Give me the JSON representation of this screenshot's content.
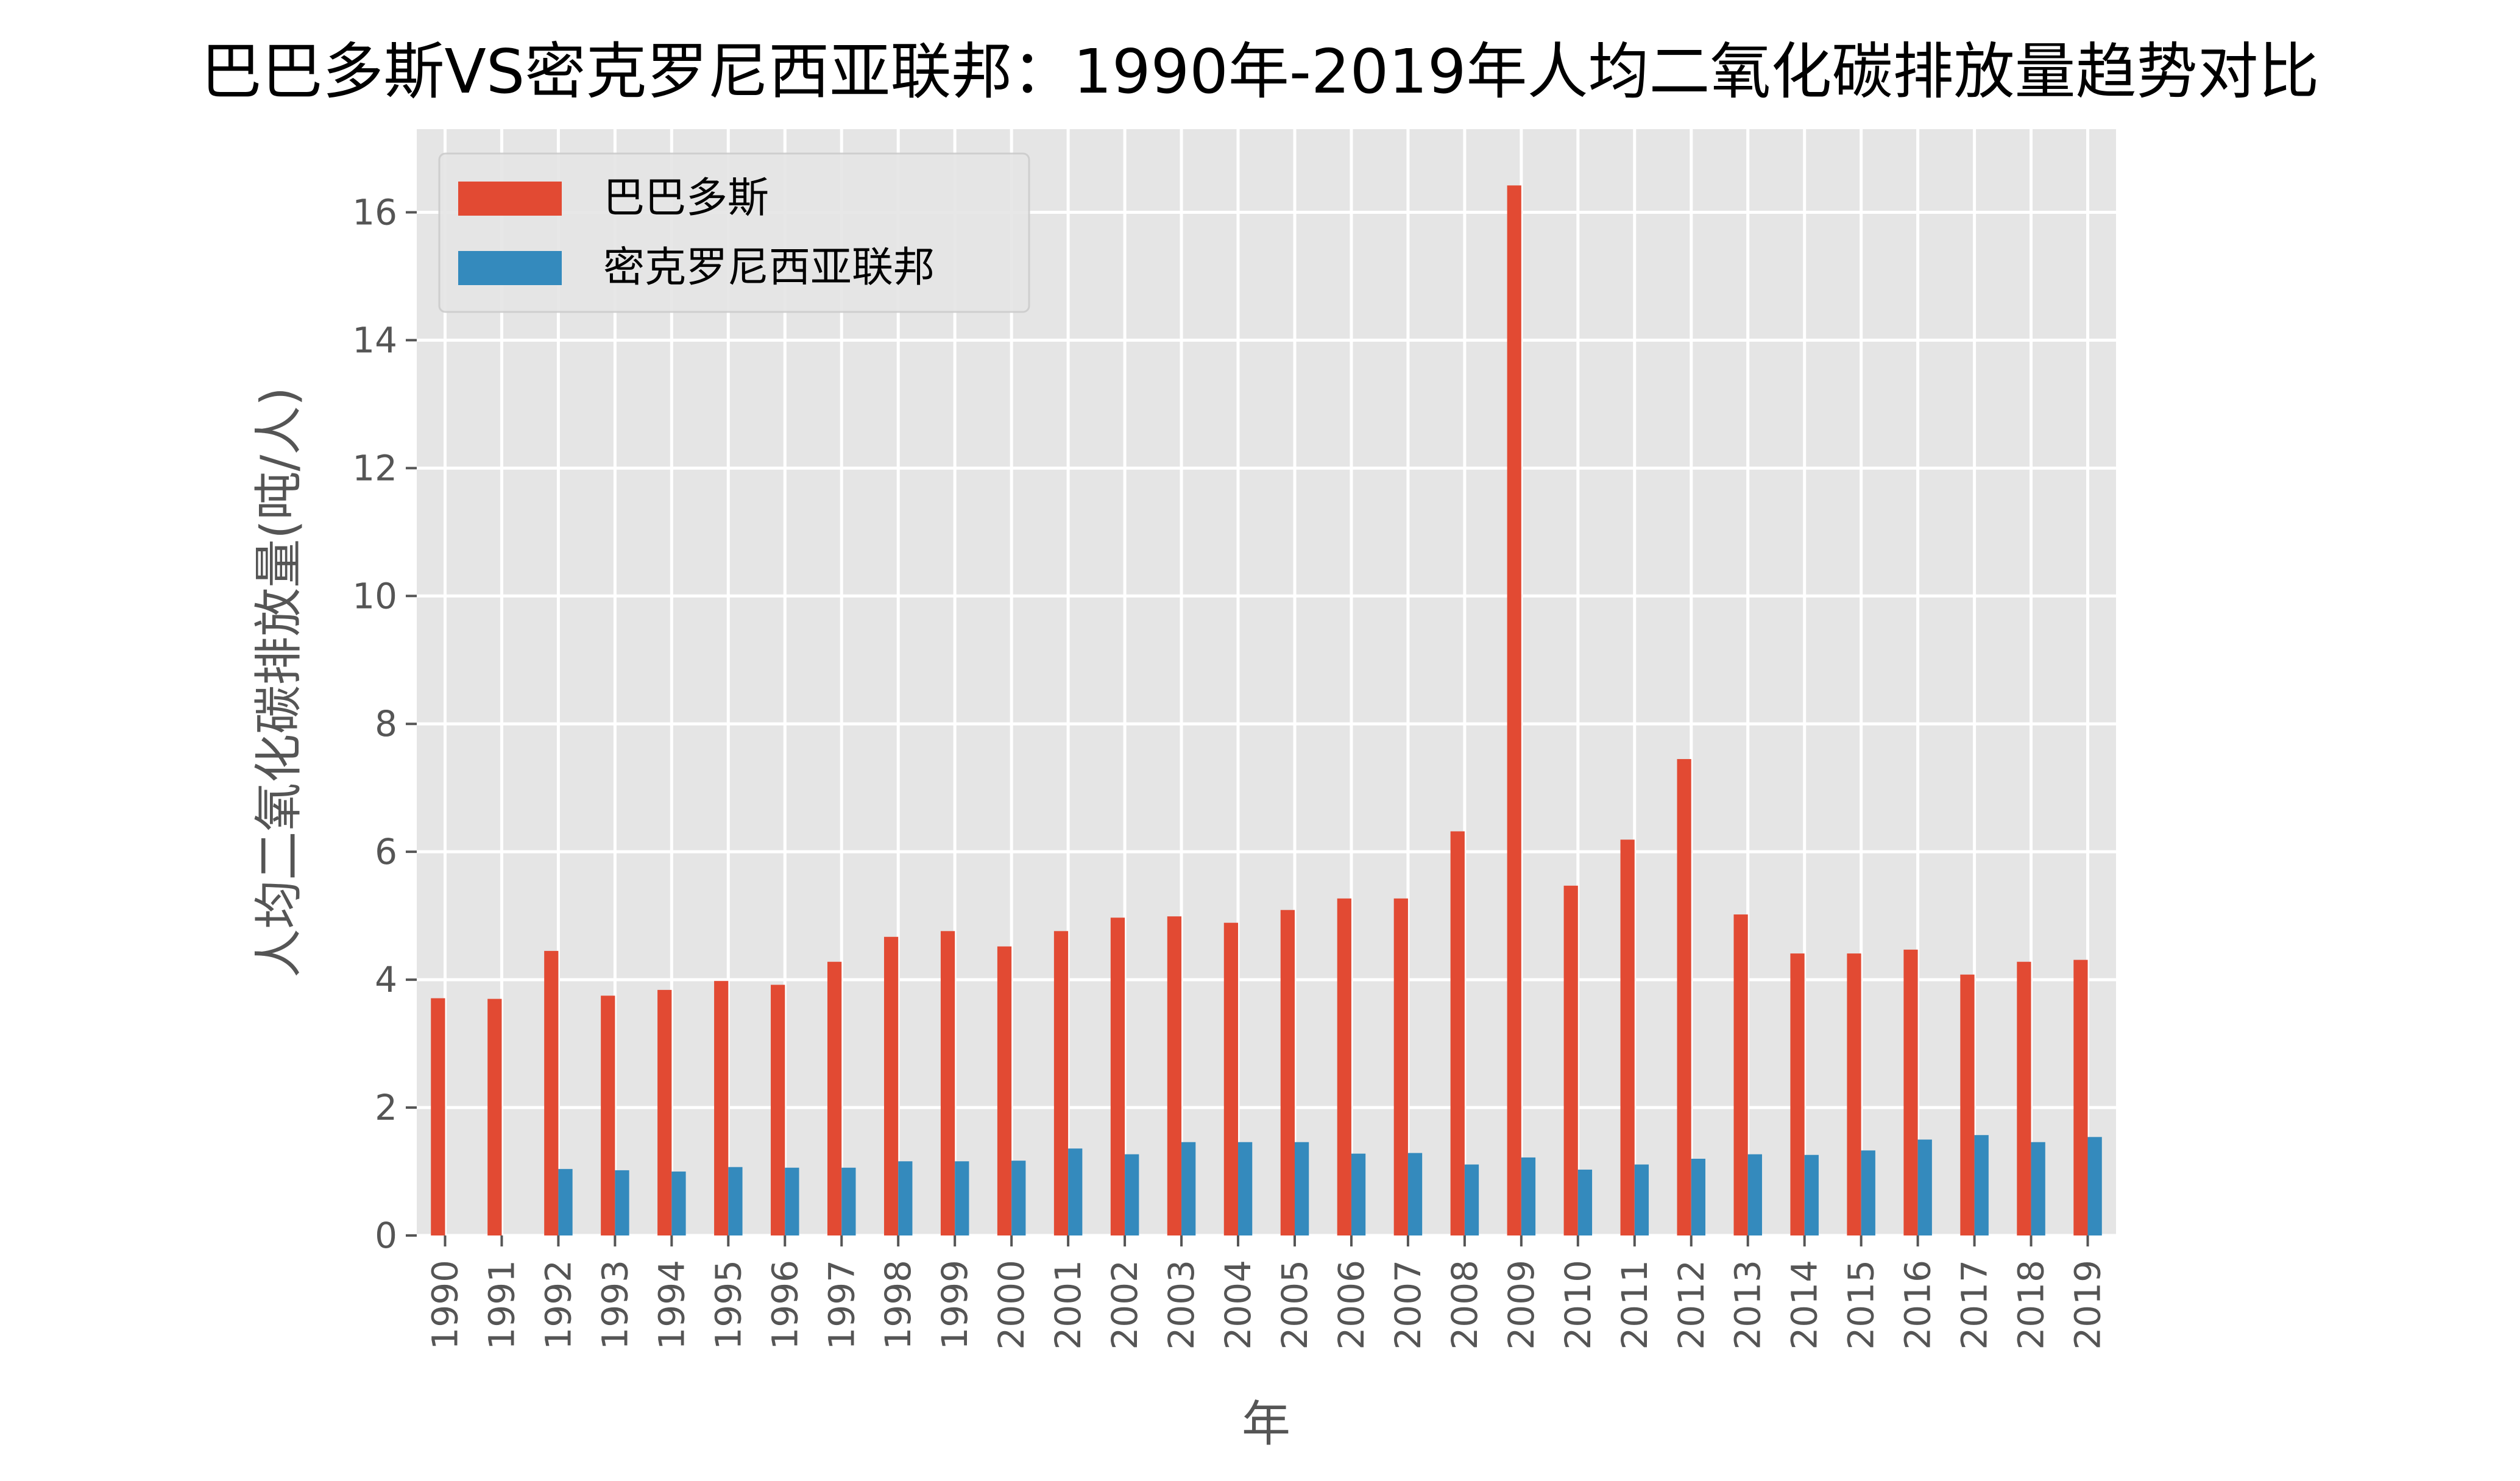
{
  "chart_data": {
    "type": "bar",
    "title": "巴巴多斯VS密克罗尼西亚联邦：1990年-2019年人均二氧化碳排放量趋势对比",
    "xlabel": "年",
    "ylabel": "人均二氧化碳排放量(吨/人)",
    "ylim": [
      0,
      17.3
    ],
    "yticks": [
      0,
      2,
      4,
      6,
      8,
      10,
      12,
      14,
      16
    ],
    "grid": true,
    "legend_position": "top-left",
    "categories": [
      "1990",
      "1991",
      "1992",
      "1993",
      "1994",
      "1995",
      "1996",
      "1997",
      "1998",
      "1999",
      "2000",
      "2001",
      "2002",
      "2003",
      "2004",
      "2005",
      "2006",
      "2007",
      "2008",
      "2009",
      "2010",
      "2011",
      "2012",
      "2013",
      "2014",
      "2015",
      "2016",
      "2017",
      "2018",
      "2019"
    ],
    "series": [
      {
        "name": "巴巴多斯",
        "color": "#E24A33",
        "values": [
          3.71,
          3.7,
          4.45,
          3.75,
          3.84,
          3.98,
          3.92,
          4.28,
          4.67,
          4.76,
          4.52,
          4.76,
          4.97,
          4.99,
          4.89,
          5.09,
          5.27,
          5.27,
          6.32,
          16.42,
          5.47,
          6.19,
          7.45,
          5.02,
          4.41,
          4.41,
          4.47,
          4.08,
          4.28,
          4.31
        ]
      },
      {
        "name": "密克罗尼西亚联邦",
        "color": "#348ABD",
        "values": [
          null,
          null,
          1.04,
          1.02,
          1.0,
          1.07,
          1.06,
          1.06,
          1.16,
          1.16,
          1.17,
          1.36,
          1.27,
          1.46,
          1.46,
          1.46,
          1.28,
          1.29,
          1.11,
          1.22,
          1.03,
          1.11,
          1.2,
          1.27,
          1.26,
          1.33,
          1.5,
          1.57,
          1.46,
          1.54
        ]
      }
    ]
  }
}
